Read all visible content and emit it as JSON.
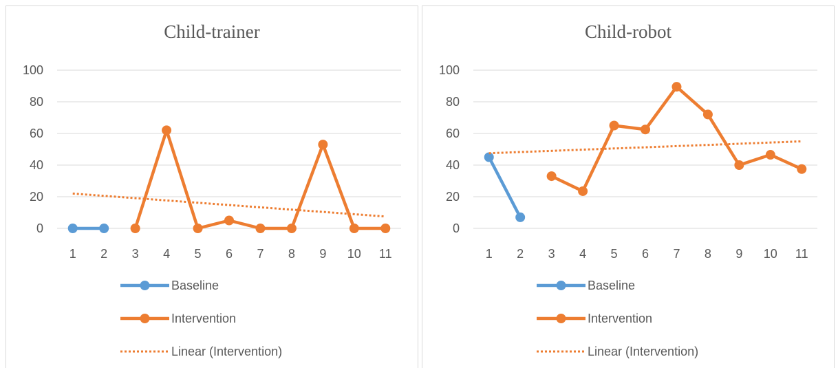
{
  "colors": {
    "baseline": "#5b9bd5",
    "intervention": "#ed7d31",
    "grid": "#d9d9d9",
    "text": "#595959"
  },
  "chart_data": [
    {
      "type": "line",
      "title": "Child-trainer",
      "x": [
        1,
        2,
        3,
        4,
        5,
        6,
        7,
        8,
        9,
        10,
        11
      ],
      "ylim": [
        0,
        100
      ],
      "yticks": [
        0,
        20,
        40,
        60,
        80,
        100
      ],
      "grid": true,
      "legend_position": "bottom",
      "series": [
        {
          "name": "Baseline",
          "x": [
            1,
            2
          ],
          "values": [
            0,
            0
          ]
        },
        {
          "name": "Intervention",
          "x": [
            3,
            4,
            5,
            6,
            7,
            8,
            9,
            10,
            11
          ],
          "values": [
            0,
            62,
            0,
            5,
            0,
            0,
            53,
            0,
            0
          ]
        },
        {
          "name": "Linear (Intervention)",
          "x": [
            1,
            11
          ],
          "values": [
            22,
            7.5
          ],
          "style": "dotted"
        }
      ]
    },
    {
      "type": "line",
      "title": "Child-robot",
      "x": [
        1,
        2,
        3,
        4,
        5,
        6,
        7,
        8,
        9,
        10,
        11
      ],
      "ylim": [
        0,
        100
      ],
      "yticks": [
        0,
        20,
        40,
        60,
        80,
        100
      ],
      "grid": true,
      "legend_position": "bottom",
      "series": [
        {
          "name": "Baseline",
          "x": [
            1,
            2
          ],
          "values": [
            45,
            7
          ]
        },
        {
          "name": "Intervention",
          "x": [
            3,
            4,
            5,
            6,
            7,
            8,
            9,
            10,
            11
          ],
          "values": [
            33,
            23.5,
            65,
            62.5,
            89.5,
            72,
            40,
            46.5,
            37.5
          ]
        },
        {
          "name": "Linear (Intervention)",
          "x": [
            1,
            11
          ],
          "values": [
            47.5,
            55
          ],
          "style": "dotted"
        }
      ]
    }
  ]
}
